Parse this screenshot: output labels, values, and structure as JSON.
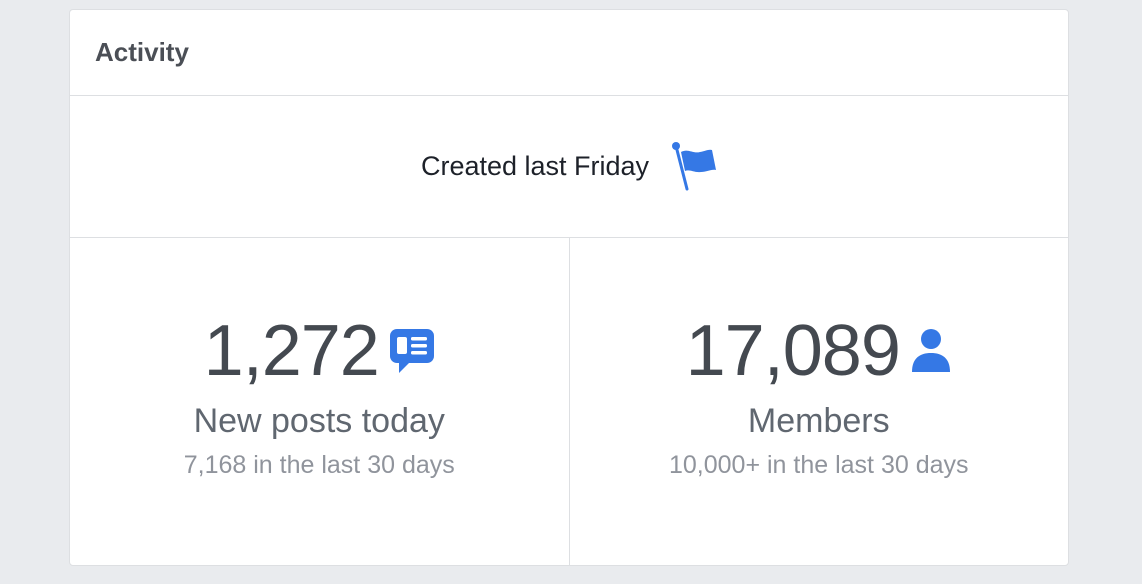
{
  "header": {
    "title": "Activity"
  },
  "created": "Created last Friday",
  "stats": [
    {
      "value": "1,272",
      "label": "New posts today",
      "sub": "7,168 in the last 30 days"
    },
    {
      "value": "17,089",
      "label": "Members",
      "sub": "10,000+ in the last 30 days"
    }
  ]
}
